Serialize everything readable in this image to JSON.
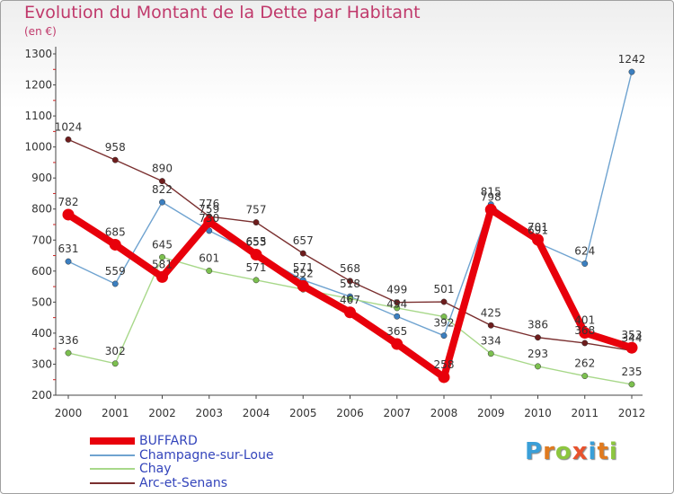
{
  "title": "Evolution du Montant de la Dette par Habitant",
  "subtitle": "(en €)",
  "logo": {
    "text": "Proxiti",
    "letter_colors": [
      "#3a9fd8",
      "#e07a1f",
      "#8dc63f",
      "#e8522d",
      "#3a9fd8",
      "#e07a1f",
      "#8dc63f"
    ]
  },
  "chart_data": {
    "type": "line",
    "title": "Evolution du Montant de la Dette par Habitant",
    "subtitle": "(en €)",
    "xlabel": "",
    "ylabel": "",
    "x": [
      "2000",
      "2001",
      "2002",
      "2003",
      "2004",
      "2005",
      "2006",
      "2007",
      "2008",
      "2009",
      "2010",
      "2011",
      "2012"
    ],
    "ylim": [
      200,
      1300
    ],
    "yticks": [
      200,
      300,
      400,
      500,
      600,
      700,
      800,
      900,
      1000,
      1100,
      1200,
      1300
    ],
    "grid": false,
    "legend_position": "bottom-left",
    "series": [
      {
        "name": "BUFFARD",
        "color": "#e8000b",
        "marker_color": "#e8000b",
        "values": [
          782,
          685,
          581,
          759,
          653,
          552,
          467,
          365,
          258,
          798,
          701,
          401,
          353
        ],
        "labels": [
          "782",
          "685",
          "581",
          "759",
          "653",
          "552",
          "467",
          "365",
          "258",
          "798",
          "701",
          "401",
          "353"
        ]
      },
      {
        "name": "Champagne-sur-Loue",
        "color": "#6fa3d0",
        "marker_color": "#3b7fc0",
        "values": [
          631,
          559,
          822,
          730,
          655,
          571,
          518,
          454,
          392,
          815,
          691,
          624,
          1242
        ],
        "labels": [
          "631",
          "559",
          "822",
          "730",
          "655",
          "571",
          "518",
          "454",
          "392",
          "815",
          "691",
          "624",
          "1242"
        ]
      },
      {
        "name": "Chay",
        "color": "#a8d88a",
        "marker_color": "#7cc04f",
        "values": [
          336,
          302,
          645,
          601,
          571,
          541,
          511,
          481,
          453,
          334,
          293,
          262,
          235
        ],
        "labels": [
          "336",
          "302",
          "645",
          "601",
          "571",
          "",
          "",
          "",
          "",
          "334",
          "293",
          "262",
          "235"
        ]
      },
      {
        "name": "Arc-et-Senans",
        "color": "#7a2f2f",
        "marker_color": "#6e1d1d",
        "values": [
          1024,
          958,
          890,
          776,
          757,
          657,
          568,
          499,
          501,
          425,
          386,
          368,
          344
        ],
        "labels": [
          "1024",
          "958",
          "890",
          "776",
          "757",
          "657",
          "568",
          "499",
          "501",
          "425",
          "386",
          "368",
          "344"
        ]
      }
    ]
  }
}
